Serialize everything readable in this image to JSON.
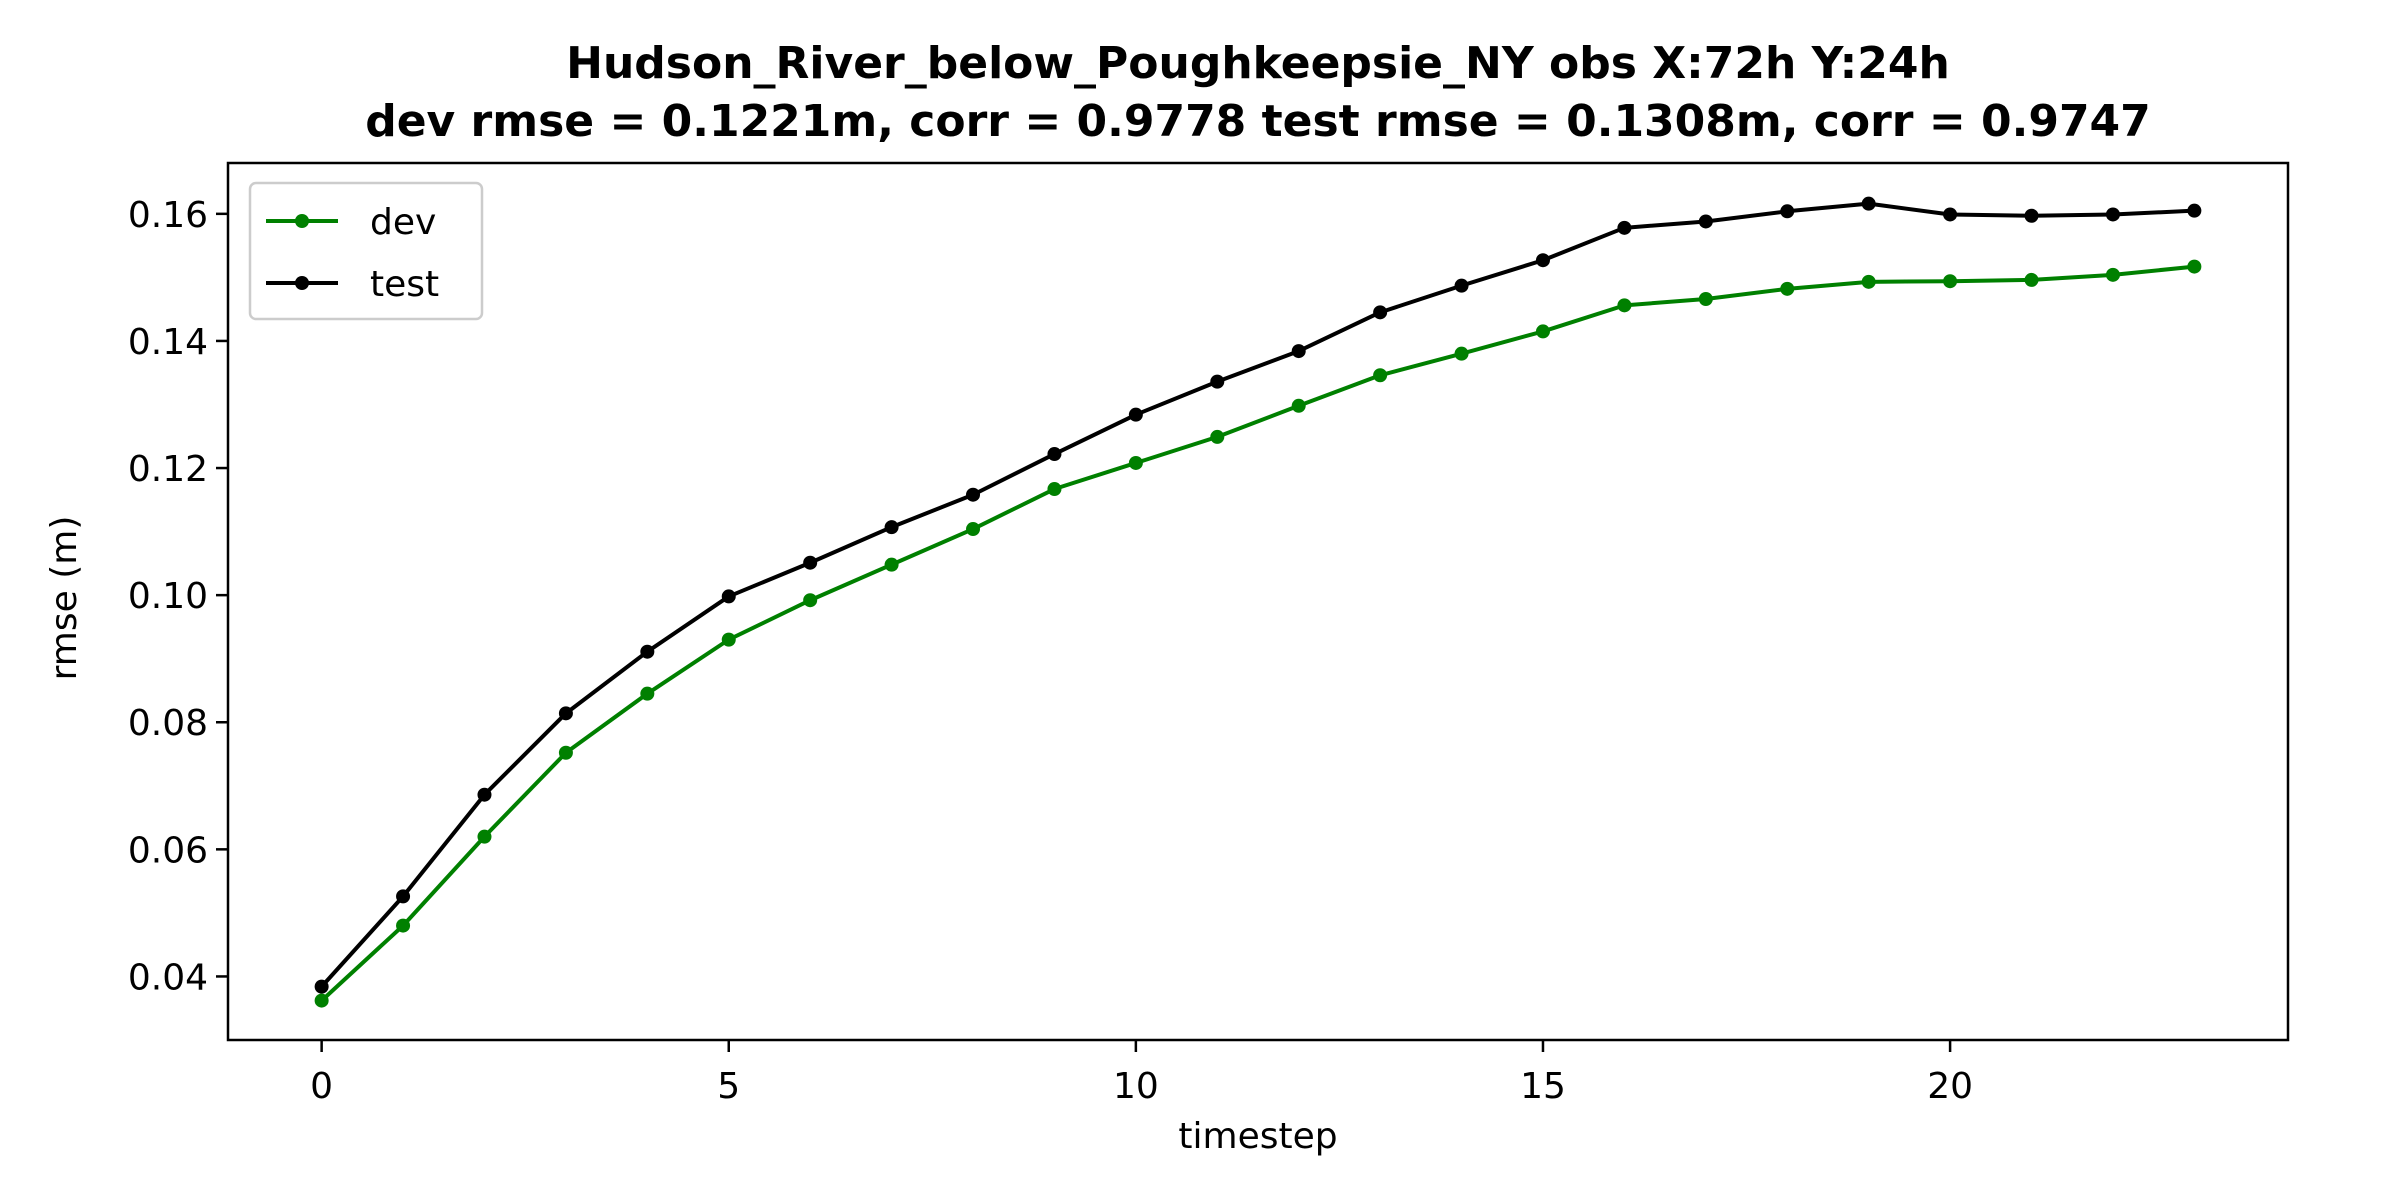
{
  "chart_data": {
    "type": "line",
    "title_line1": "Hudson_River_below_Poughkeepsie_NY   obs   X:72h   Y:24h",
    "title_line2": "dev rmse = 0.1221m, corr = 0.9778   test rmse = 0.1308m, corr = 0.9747",
    "xlabel": "timestep",
    "ylabel": "rmse (m)",
    "xlim": [
      -1.15,
      24.15
    ],
    "ylim": [
      0.03,
      0.168
    ],
    "xticks": [
      "0",
      "5",
      "10",
      "15",
      "20"
    ],
    "yticks": [
      "0.04",
      "0.06",
      "0.08",
      "0.10",
      "0.12",
      "0.14",
      "0.16"
    ],
    "grid": false,
    "legend_position": "top-left",
    "x": [
      0,
      1,
      2,
      3,
      4,
      5,
      6,
      7,
      8,
      9,
      10,
      11,
      12,
      13,
      14,
      15,
      16,
      17,
      18,
      19,
      20,
      21,
      22,
      23
    ],
    "series": [
      {
        "name": "dev",
        "color": "#008000",
        "values": [
          0.0362,
          0.048,
          0.062,
          0.0752,
          0.0845,
          0.093,
          0.0992,
          0.1048,
          0.1104,
          0.1167,
          0.1208,
          0.1249,
          0.1298,
          0.1346,
          0.138,
          0.1415,
          0.1456,
          0.1466,
          0.1482,
          0.1493,
          0.1494,
          0.1496,
          0.1504,
          0.1517
        ]
      },
      {
        "name": "test",
        "color": "#000000",
        "values": [
          0.0384,
          0.0526,
          0.0686,
          0.0814,
          0.0911,
          0.0998,
          0.1051,
          0.1107,
          0.1158,
          0.1222,
          0.1284,
          0.1336,
          0.1384,
          0.1445,
          0.1487,
          0.1527,
          0.1578,
          0.1588,
          0.1604,
          0.1616,
          0.1599,
          0.1597,
          0.1599,
          0.1605
        ]
      }
    ]
  }
}
